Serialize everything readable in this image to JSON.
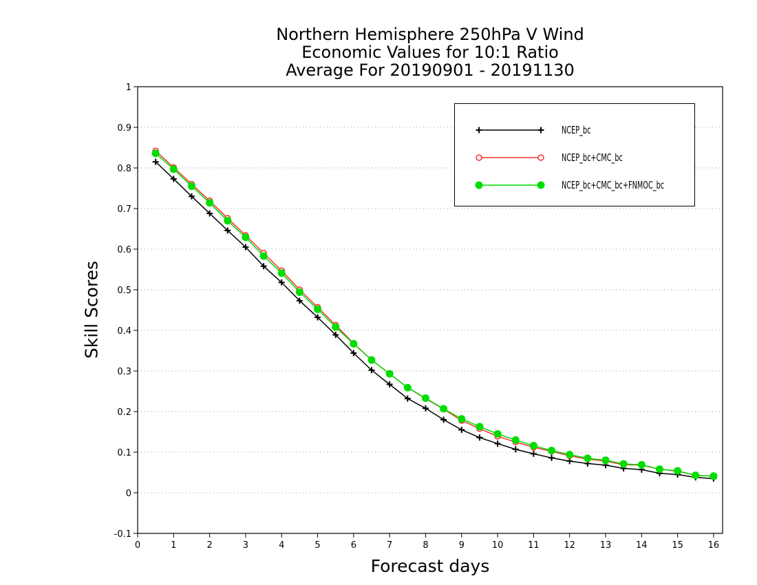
{
  "chart_data": {
    "type": "line",
    "title": [
      "Northern Hemisphere 250hPa V Wind",
      "Economic Values for 10:1 Ratio",
      "Average For 20190901 - 20191130"
    ],
    "xlabel": "Forecast days",
    "ylabel": "Skill Scores",
    "xlim": [
      0,
      16.25
    ],
    "ylim": [
      -0.1,
      1
    ],
    "xticks": [
      0,
      1,
      2,
      3,
      4,
      5,
      6,
      7,
      8,
      9,
      10,
      11,
      12,
      13,
      14,
      15,
      16
    ],
    "yticks": [
      -0.1,
      0,
      0.1,
      0.2,
      0.3,
      0.4,
      0.5,
      0.6,
      0.7,
      0.8,
      0.9,
      1
    ],
    "ytick_labels": [
      "-0.1",
      "0",
      "0.1",
      "0.2",
      "0.3",
      "0.4",
      "0.5",
      "0.6",
      "0.7",
      "0.8",
      "0.9",
      "1"
    ],
    "grid": "horizontal dotted",
    "legend_position": "top-right",
    "x": [
      0.5,
      1,
      1.5,
      2,
      2.5,
      3,
      3.5,
      4,
      4.5,
      5,
      5.5,
      6,
      6.5,
      7,
      7.5,
      8,
      8.5,
      9,
      9.5,
      10,
      10.5,
      11,
      11.5,
      12,
      12.5,
      13,
      13.5,
      14,
      14.5,
      15,
      15.5,
      16
    ],
    "series": [
      {
        "name": "NCEP_bc",
        "color": "#000000",
        "marker": "plus",
        "values": [
          0.815,
          0.773,
          0.73,
          0.688,
          0.646,
          0.605,
          0.558,
          0.518,
          0.473,
          0.432,
          0.389,
          0.344,
          0.302,
          0.267,
          0.232,
          0.208,
          0.18,
          0.155,
          0.136,
          0.121,
          0.107,
          0.096,
          0.086,
          0.078,
          0.072,
          0.068,
          0.06,
          0.057,
          0.048,
          0.045,
          0.038,
          0.035
        ]
      },
      {
        "name": "NCEP_bc+CMC_bc",
        "color": "#ff3030",
        "marker": "open-circle",
        "values": [
          0.842,
          0.801,
          0.76,
          0.719,
          0.676,
          0.634,
          0.59,
          0.547,
          0.5,
          0.457,
          0.413,
          0.368,
          0.327,
          0.293,
          0.259,
          0.232,
          0.206,
          0.178,
          0.158,
          0.139,
          0.125,
          0.112,
          0.102,
          0.091,
          0.083,
          0.078,
          0.069,
          0.068,
          0.058,
          0.053,
          0.043,
          0.041
        ]
      },
      {
        "name": "NCEP_bc+CMC_bc+FNMOC_bc",
        "color": "#00dd00",
        "marker": "filled-circle",
        "values": [
          0.836,
          0.797,
          0.755,
          0.714,
          0.67,
          0.629,
          0.583,
          0.541,
          0.494,
          0.452,
          0.408,
          0.367,
          0.327,
          0.293,
          0.259,
          0.233,
          0.207,
          0.182,
          0.163,
          0.145,
          0.13,
          0.116,
          0.104,
          0.094,
          0.085,
          0.08,
          0.071,
          0.069,
          0.058,
          0.054,
          0.043,
          0.041
        ]
      }
    ]
  }
}
